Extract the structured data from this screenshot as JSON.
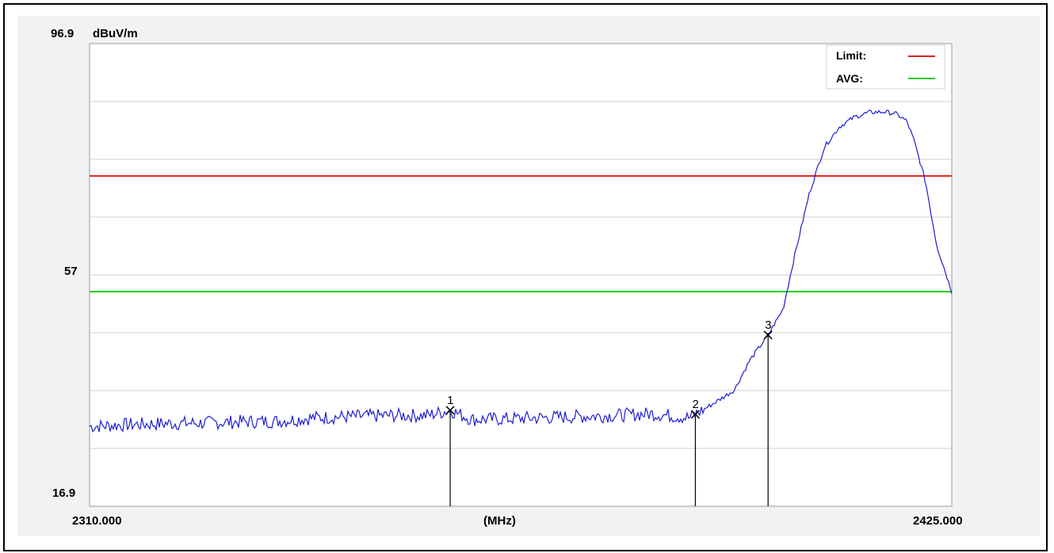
{
  "chart_data": {
    "type": "line",
    "ylabel": "dBuV/m",
    "xlabel": "(MHz)",
    "y_top_label": "96.9",
    "y_mid_label": "57",
    "y_bottom_label": "16.9",
    "x_left_label": "2310.000",
    "x_right_label": "2425.000",
    "xlim": [
      2310.0,
      2425.0
    ],
    "ylim": [
      16.9,
      96.9
    ],
    "grid": "horizontal",
    "legend_position": "top-right",
    "legend": [
      {
        "name": "Limit:",
        "color": "#e02020"
      },
      {
        "name": "AVG:",
        "color": "#22cc22"
      }
    ],
    "limit_lines": [
      {
        "name": "Limit:",
        "value": 74.0,
        "color": "#e02020"
      },
      {
        "name": "AVG:",
        "value": 54.0,
        "color": "#22cc22"
      }
    ],
    "series": [
      {
        "color": "#1f1fd0",
        "x": [
          2310.0,
          2315.0,
          2320.0,
          2325.0,
          2330.0,
          2335.0,
          2340.0,
          2345.0,
          2350.0,
          2355.0,
          2358.1,
          2361.0,
          2365.0,
          2370.0,
          2375.0,
          2380.0,
          2385.0,
          2390.0,
          2390.8,
          2393.0,
          2396.0,
          2398.0,
          2400.5,
          2402.5,
          2404.0,
          2406.0,
          2408.0,
          2410.0,
          2412.0,
          2414.0,
          2416.0,
          2417.5,
          2419.0,
          2420.0,
          2421.5,
          2423.0,
          2425.0
        ],
        "y": [
          30.7,
          31.0,
          31.2,
          31.3,
          31.5,
          31.6,
          32.2,
          32.4,
          32.6,
          32.6,
          33.5,
          31.9,
          32.0,
          32.2,
          32.4,
          32.6,
          32.9,
          32.2,
          32.8,
          34.5,
          37.0,
          42.0,
          46.5,
          51.0,
          60.0,
          71.0,
          79.0,
          82.5,
          84.2,
          85.0,
          85.1,
          84.8,
          83.5,
          80.0,
          73.0,
          62.0,
          54.0
        ]
      }
    ],
    "markers": [
      {
        "label": "1",
        "x": 2358.1,
        "y": 33.5
      },
      {
        "label": "2",
        "x": 2390.8,
        "y": 32.8
      },
      {
        "label": "3",
        "x": 2400.5,
        "y": 46.5
      }
    ]
  }
}
